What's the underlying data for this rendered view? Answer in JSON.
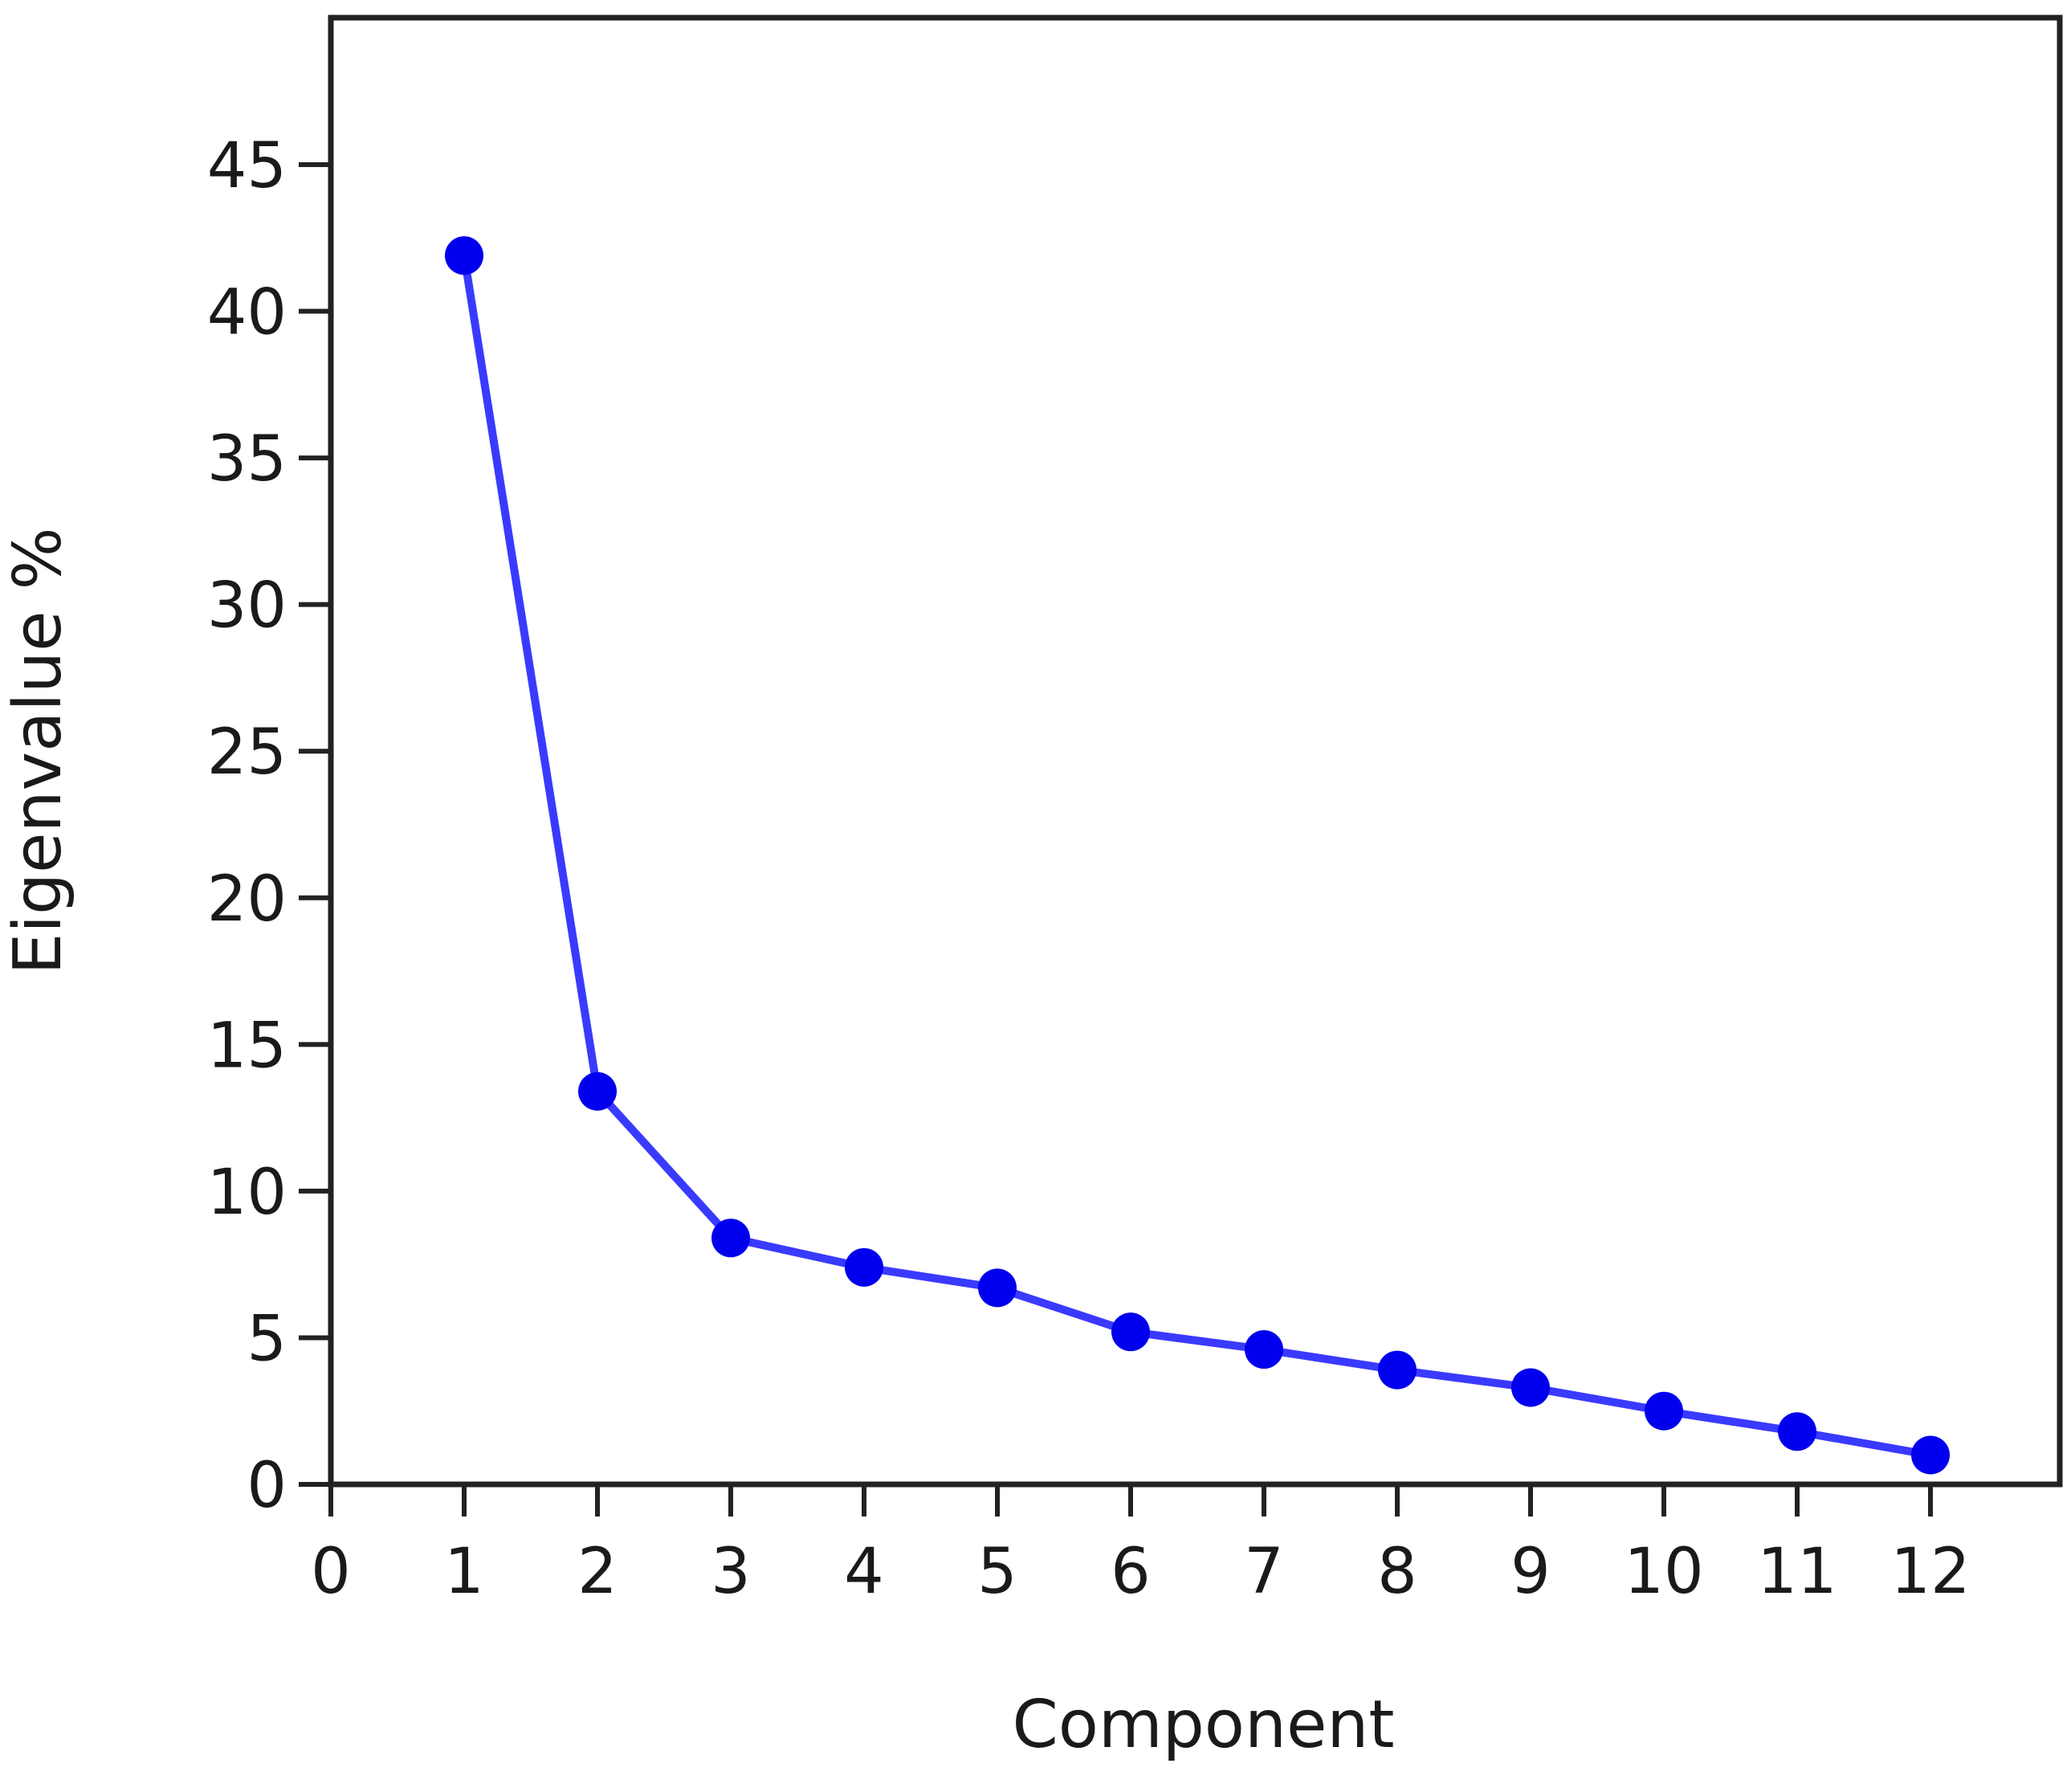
{
  "chart_data": {
    "type": "line",
    "title": "",
    "xlabel": "Component",
    "ylabel": "Eigenvalue %",
    "xlim": [
      0,
      13
    ],
    "ylim": [
      0,
      50
    ],
    "x_ticks": [
      "0",
      "1",
      "2",
      "3",
      "4",
      "5",
      "6",
      "7",
      "8",
      "9",
      "10",
      "11",
      "12"
    ],
    "y_ticks": [
      "0",
      "5",
      "10",
      "15",
      "20",
      "25",
      "30",
      "35",
      "40",
      "45"
    ],
    "grid": false,
    "legend": "none",
    "series": [
      {
        "color": "#3a3aff",
        "marker_color": "#0000ee",
        "x": [
          1,
          2,
          3,
          4,
          5,
          6,
          7,
          8,
          9,
          10,
          11,
          12
        ],
        "y": [
          41.9,
          13.4,
          8.4,
          7.4,
          6.7,
          5.2,
          4.6,
          3.9,
          3.3,
          2.5,
          1.8,
          1.0
        ]
      }
    ]
  }
}
